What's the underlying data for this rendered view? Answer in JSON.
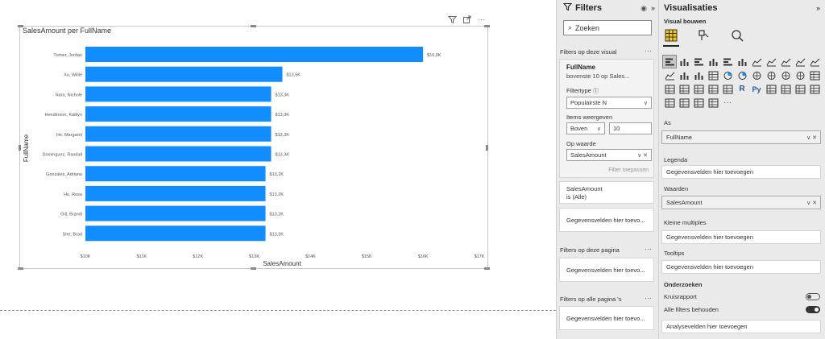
{
  "chart_data": {
    "type": "bar",
    "orientation": "horizontal",
    "title": "SalesAmount per FullName",
    "xlabel": "SalesAmount",
    "ylabel": "FullName",
    "categories": [
      "Turner, Jordan",
      "Xu, Willie",
      "Nara, Nichole",
      "Henderson, Kaitlyn",
      "He, Margaret",
      "Dominguez, Randall",
      "Gonzales, Adriana",
      "Hu, Rosa",
      "Gill, Brandi",
      "She, Brad"
    ],
    "values": [
      16000,
      13500,
      13300,
      13300,
      13300,
      13300,
      13200,
      13200,
      13200,
      13200
    ],
    "data_labels": [
      "$16,0K",
      "$13,5K",
      "$13,3K",
      "$13,3K",
      "$13,3K",
      "$13,3K",
      "$13,2K",
      "$13,2K",
      "$13,2K",
      "$13,2K"
    ],
    "xlim": [
      10000,
      17000
    ],
    "x_ticks": [
      10000,
      11000,
      12000,
      13000,
      14000,
      15000,
      16000,
      17000
    ],
    "x_tick_labels": [
      "$10K",
      "$11K",
      "$12K",
      "$13K",
      "$14K",
      "$15K",
      "$16K",
      "$17K"
    ],
    "bar_color": "#118DFF",
    "grid": false
  },
  "filters": {
    "title": "Filters",
    "search_placeholder": "Zoeken",
    "visual_section": "Filters op deze visual",
    "fullname_card": {
      "title": "FullName",
      "subtitle": "bovenste 10 op Sales...",
      "filtertype_label": "Filtertype",
      "filtertype_value": "Populairste N",
      "items_label": "Items weergeven",
      "items_direction": "Boven",
      "items_count": "10",
      "by_value_label": "Op waarde",
      "by_value_field": "SalesAmount",
      "apply_label": "Filter toepassen"
    },
    "salesamount_card": {
      "title": "SalesAmount",
      "subtitle": "is (Alle)"
    },
    "add_fields_label": "Gegevensvelden hier toevo...",
    "page_section": "Filters op deze pagina",
    "all_pages_section": "Filters op alle pagina 's"
  },
  "visualizations": {
    "title": "Visualisaties",
    "build_label": "Visual bouwen",
    "wells": {
      "axis_label": "As",
      "axis_field": "FullName",
      "legend_label": "Legenda",
      "legend_placeholder": "Gegevensvelden hier toevoegen",
      "values_label": "Waarden",
      "values_field": "SalesAmount",
      "small_multiples_label": "Kleine multiples",
      "small_multiples_placeholder": "Gegevensvelden hier toevoegen",
      "tooltips_label": "Tooltips",
      "tooltips_placeholder": "Gegevensvelden hier toevoegen"
    },
    "drill": {
      "section_label": "Onderzoeken",
      "cross_report_label": "Kruisrapport",
      "keep_filters_label": "Alle filters behouden",
      "drill_placeholder": "Analysevelden hier toevoegen"
    }
  }
}
